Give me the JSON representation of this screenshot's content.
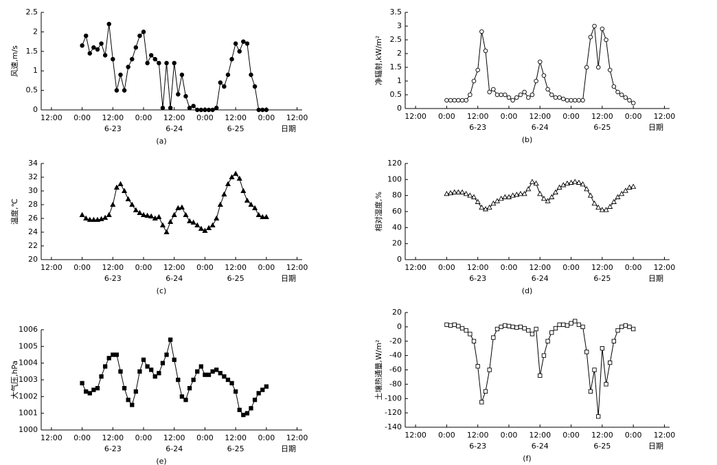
{
  "chart_data": [
    {
      "type": "line",
      "caption": "(a)",
      "y_label": "风速,m/s",
      "x_label": "日期",
      "color": "#000000",
      "marker": "circle",
      "marker_fill": "filled",
      "x": [
        0,
        1.5,
        3,
        4.5,
        6,
        7.5,
        9,
        10.5,
        12,
        13.5,
        15,
        16.5,
        18,
        19.5,
        21,
        22.5,
        24,
        25.5,
        27,
        28.5,
        30,
        31.5,
        33,
        34.5,
        36,
        37.5,
        39,
        40.5,
        42,
        43.5,
        45,
        46.5,
        48,
        49.5,
        51,
        52.5,
        54,
        55.5,
        57,
        58.5,
        60,
        61.5,
        63,
        64.5,
        66,
        67.5,
        69,
        70.5,
        72
      ],
      "values": [
        1.65,
        1.9,
        1.45,
        1.6,
        1.55,
        1.7,
        1.4,
        2.2,
        1.3,
        0.5,
        0.9,
        0.5,
        1.1,
        1.3,
        1.6,
        1.9,
        2.0,
        1.2,
        1.4,
        1.3,
        1.2,
        0.05,
        1.2,
        0.05,
        1.2,
        0.4,
        0.9,
        0.35,
        0.05,
        0.1,
        0,
        0,
        0,
        0,
        0,
        0.05,
        0.7,
        0.6,
        0.9,
        1.3,
        1.7,
        1.5,
        1.75,
        1.7,
        0.9,
        0.6,
        0,
        0,
        0
      ],
      "xlim": [
        -16,
        86
      ],
      "ylim": [
        0,
        2.5
      ],
      "xticks": [
        {
          "value": -12,
          "label": "12:00"
        },
        {
          "value": 0,
          "label": "0:00"
        },
        {
          "value": 12,
          "label": "12:00"
        },
        {
          "value": 24,
          "label": "0:00"
        },
        {
          "value": 36,
          "label": "12:00"
        },
        {
          "value": 48,
          "label": "0:00"
        },
        {
          "value": 60,
          "label": "12:00"
        },
        {
          "value": 72,
          "label": "0:00"
        },
        {
          "value": 84,
          "label": "12:00"
        }
      ],
      "date_labels": [
        {
          "value": 12,
          "label": "6-23"
        },
        {
          "value": 36,
          "label": "6-24"
        },
        {
          "value": 60,
          "label": "6-25"
        }
      ],
      "yticks": [
        0,
        0.5,
        1,
        1.5,
        2,
        2.5
      ]
    },
    {
      "type": "line",
      "caption": "(b)",
      "y_label": "净辐射,kW/m²",
      "x_label": "日期",
      "color": "#000000",
      "marker": "circle",
      "marker_fill": "open",
      "x": [
        0,
        1.5,
        3,
        4.5,
        6,
        7.5,
        9,
        10.5,
        12,
        13.5,
        15,
        16.5,
        18,
        19.5,
        21,
        22.5,
        24,
        25.5,
        27,
        28.5,
        30,
        31.5,
        33,
        34.5,
        36,
        37.5,
        39,
        40.5,
        42,
        43.5,
        45,
        46.5,
        48,
        49.5,
        51,
        52.5,
        54,
        55.5,
        57,
        58.5,
        60,
        61.5,
        63,
        64.5,
        66,
        67.5,
        69,
        70.5,
        72
      ],
      "values": [
        0.3,
        0.3,
        0.3,
        0.3,
        0.3,
        0.3,
        0.5,
        1.0,
        1.4,
        2.8,
        2.1,
        0.6,
        0.7,
        0.5,
        0.5,
        0.5,
        0.4,
        0.3,
        0.4,
        0.5,
        0.6,
        0.4,
        0.5,
        1.0,
        1.7,
        1.2,
        0.7,
        0.5,
        0.4,
        0.4,
        0.35,
        0.3,
        0.3,
        0.3,
        0.3,
        0.3,
        1.5,
        2.6,
        3.0,
        1.5,
        2.9,
        2.5,
        1.4,
        0.8,
        0.6,
        0.5,
        0.4,
        0.3,
        0.2
      ],
      "xlim": [
        -16,
        86
      ],
      "ylim": [
        0,
        3.5
      ],
      "xticks": [
        {
          "value": -12,
          "label": "12:00"
        },
        {
          "value": 0,
          "label": "0:00"
        },
        {
          "value": 12,
          "label": "12:00"
        },
        {
          "value": 24,
          "label": "0:00"
        },
        {
          "value": 36,
          "label": "12:00"
        },
        {
          "value": 48,
          "label": "0:00"
        },
        {
          "value": 60,
          "label": "12:00"
        },
        {
          "value": 72,
          "label": "0:00"
        },
        {
          "value": 84,
          "label": "12:00"
        }
      ],
      "date_labels": [
        {
          "value": 12,
          "label": "6-23"
        },
        {
          "value": 36,
          "label": "6-24"
        },
        {
          "value": 60,
          "label": "6-25"
        }
      ],
      "yticks": [
        0,
        0.5,
        1,
        1.5,
        2,
        2.5,
        3,
        3.5
      ]
    },
    {
      "type": "line",
      "caption": "(c)",
      "y_label": "温度,℃",
      "x_label": "日期",
      "color": "#000000",
      "marker": "triangle",
      "marker_fill": "filled",
      "x": [
        0,
        1.5,
        3,
        4.5,
        6,
        7.5,
        9,
        10.5,
        12,
        13.5,
        15,
        16.5,
        18,
        19.5,
        21,
        22.5,
        24,
        25.5,
        27,
        28.5,
        30,
        31.5,
        33,
        34.5,
        36,
        37.5,
        39,
        40.5,
        42,
        43.5,
        45,
        46.5,
        48,
        49.5,
        51,
        52.5,
        54,
        55.5,
        57,
        58.5,
        60,
        61.5,
        63,
        64.5,
        66,
        67.5,
        69,
        70.5,
        72
      ],
      "values": [
        26.5,
        26,
        25.8,
        25.8,
        25.8,
        25.9,
        26.1,
        26.5,
        28,
        30.5,
        31,
        30,
        28.8,
        28,
        27.2,
        26.8,
        26.5,
        26.4,
        26.3,
        26,
        26.2,
        25,
        24,
        25.5,
        26.5,
        27.5,
        27.6,
        26.5,
        25.6,
        25.4,
        25,
        24.5,
        24.2,
        24.6,
        25,
        26,
        28,
        29.5,
        31,
        32,
        32.5,
        31.8,
        30,
        28.6,
        28,
        27.5,
        26.5,
        26.2,
        26.2
      ],
      "xlim": [
        -16,
        86
      ],
      "ylim": [
        20,
        34
      ],
      "xticks": [
        {
          "value": -12,
          "label": "12:00"
        },
        {
          "value": 0,
          "label": "0:00"
        },
        {
          "value": 12,
          "label": "12:00"
        },
        {
          "value": 24,
          "label": "0:00"
        },
        {
          "value": 36,
          "label": "12:00"
        },
        {
          "value": 48,
          "label": "0:00"
        },
        {
          "value": 60,
          "label": "12:00"
        },
        {
          "value": 72,
          "label": "0:00"
        },
        {
          "value": 84,
          "label": "12:00"
        }
      ],
      "date_labels": [
        {
          "value": 12,
          "label": "6-23"
        },
        {
          "value": 36,
          "label": "6-24"
        },
        {
          "value": 60,
          "label": "6-25"
        }
      ],
      "yticks": [
        20,
        22,
        24,
        26,
        28,
        30,
        32,
        34
      ]
    },
    {
      "type": "line",
      "caption": "(d)",
      "y_label": "相对湿度,%",
      "x_label": "日期",
      "color": "#000000",
      "marker": "triangle",
      "marker_fill": "open",
      "x": [
        0,
        1.5,
        3,
        4.5,
        6,
        7.5,
        9,
        10.5,
        12,
        13.5,
        15,
        16.5,
        18,
        19.5,
        21,
        22.5,
        24,
        25.5,
        27,
        28.5,
        30,
        31.5,
        33,
        34.5,
        36,
        37.5,
        39,
        40.5,
        42,
        43.5,
        45,
        46.5,
        48,
        49.5,
        51,
        52.5,
        54,
        55.5,
        57,
        58.5,
        60,
        61.5,
        63,
        64.5,
        66,
        67.5,
        69,
        70.5,
        72
      ],
      "values": [
        82,
        83,
        84,
        84,
        84,
        82,
        80,
        78,
        72,
        65,
        63,
        65,
        70,
        73,
        76,
        78,
        78,
        80,
        81,
        82,
        82,
        88,
        97,
        95,
        82,
        76,
        73,
        78,
        84,
        90,
        93,
        95,
        96,
        97,
        96,
        94,
        88,
        80,
        70,
        65,
        62,
        62,
        66,
        72,
        78,
        82,
        86,
        90,
        91
      ],
      "xlim": [
        -16,
        86
      ],
      "ylim": [
        0,
        120
      ],
      "xticks": [
        {
          "value": -12,
          "label": "12:00"
        },
        {
          "value": 0,
          "label": "0:00"
        },
        {
          "value": 12,
          "label": "12:00"
        },
        {
          "value": 24,
          "label": "0:00"
        },
        {
          "value": 36,
          "label": "12:00"
        },
        {
          "value": 48,
          "label": "0:00"
        },
        {
          "value": 60,
          "label": "12:00"
        },
        {
          "value": 72,
          "label": "0:00"
        },
        {
          "value": 84,
          "label": "12:00"
        }
      ],
      "date_labels": [
        {
          "value": 12,
          "label": "6-23"
        },
        {
          "value": 36,
          "label": "6-24"
        },
        {
          "value": 60,
          "label": "6-25"
        }
      ],
      "yticks": [
        0,
        20,
        40,
        60,
        80,
        100,
        120
      ]
    },
    {
      "type": "line",
      "caption": "(e)",
      "y_label": "大气压,hPa",
      "x_label": "日期",
      "color": "#000000",
      "marker": "square",
      "marker_fill": "filled",
      "x": [
        0,
        1.5,
        3,
        4.5,
        6,
        7.5,
        9,
        10.5,
        12,
        13.5,
        15,
        16.5,
        18,
        19.5,
        21,
        22.5,
        24,
        25.5,
        27,
        28.5,
        30,
        31.5,
        33,
        34.5,
        36,
        37.5,
        39,
        40.5,
        42,
        43.5,
        45,
        46.5,
        48,
        49.5,
        51,
        52.5,
        54,
        55.5,
        57,
        58.5,
        60,
        61.5,
        63,
        64.5,
        66,
        67.5,
        69,
        70.5,
        72
      ],
      "values": [
        1002.8,
        1002.3,
        1002.2,
        1002.4,
        1002.5,
        1003.2,
        1003.8,
        1004.3,
        1004.5,
        1004.5,
        1003.5,
        1002.5,
        1001.8,
        1001.5,
        1002.3,
        1003.5,
        1004.2,
        1003.8,
        1003.6,
        1003.2,
        1003.4,
        1004,
        1004.5,
        1005.4,
        1004.2,
        1003,
        1002,
        1001.8,
        1002.5,
        1003,
        1003.5,
        1003.8,
        1003.3,
        1003.3,
        1003.5,
        1003.6,
        1003.4,
        1003.2,
        1003,
        1002.8,
        1002.3,
        1001.2,
        1000.9,
        1001,
        1001.3,
        1001.8,
        1002.2,
        1002.4,
        1002.6
      ],
      "xlim": [
        -16,
        86
      ],
      "ylim": [
        1000,
        1006
      ],
      "xticks": [
        {
          "value": -12,
          "label": "12:00"
        },
        {
          "value": 0,
          "label": "0:00"
        },
        {
          "value": 12,
          "label": "12:00"
        },
        {
          "value": 24,
          "label": "0:00"
        },
        {
          "value": 36,
          "label": "12:00"
        },
        {
          "value": 48,
          "label": "0:00"
        },
        {
          "value": 60,
          "label": "12:00"
        },
        {
          "value": 72,
          "label": "0:00"
        },
        {
          "value": 84,
          "label": "12:00"
        }
      ],
      "date_labels": [
        {
          "value": 12,
          "label": "6-23"
        },
        {
          "value": 36,
          "label": "6-24"
        },
        {
          "value": 60,
          "label": "6-25"
        }
      ],
      "yticks": [
        1000,
        1001,
        1002,
        1003,
        1004,
        1005,
        1006
      ]
    },
    {
      "type": "line",
      "caption": "(f)",
      "y_label": "土壤热通量,W/m²",
      "x_label": "日期",
      "color": "#000000",
      "marker": "square",
      "marker_fill": "open",
      "x": [
        0,
        1.5,
        3,
        4.5,
        6,
        7.5,
        9,
        10.5,
        12,
        13.5,
        15,
        16.5,
        18,
        19.5,
        21,
        22.5,
        24,
        25.5,
        27,
        28.5,
        30,
        31.5,
        33,
        34.5,
        36,
        37.5,
        39,
        40.5,
        42,
        43.5,
        45,
        46.5,
        48,
        49.5,
        51,
        52.5,
        54,
        55.5,
        57,
        58.5,
        60,
        61.5,
        63,
        64.5,
        66,
        67.5,
        69,
        70.5,
        72
      ],
      "values": [
        3,
        2,
        3,
        1,
        -2,
        -5,
        -10,
        -20,
        -55,
        -105,
        -90,
        -60,
        -15,
        -3,
        0,
        2,
        1,
        0,
        -1,
        0,
        -2,
        -5,
        -10,
        -3,
        -68,
        -40,
        -20,
        -8,
        -2,
        3,
        3,
        2,
        5,
        8,
        3,
        0,
        -35,
        -90,
        -60,
        -125,
        -30,
        -80,
        -50,
        -20,
        -5,
        0,
        2,
        0,
        -3
      ],
      "xlim": [
        -16,
        86
      ],
      "ylim": [
        -140,
        20
      ],
      "xticks": [
        {
          "value": -12,
          "label": "12:00"
        },
        {
          "value": 0,
          "label": "0:00"
        },
        {
          "value": 12,
          "label": "12:00"
        },
        {
          "value": 24,
          "label": "0:00"
        },
        {
          "value": 36,
          "label": "12:00"
        },
        {
          "value": 48,
          "label": "0:00"
        },
        {
          "value": 60,
          "label": "12:00"
        },
        {
          "value": 72,
          "label": "0:00"
        },
        {
          "value": 84,
          "label": "12:00"
        }
      ],
      "date_labels": [
        {
          "value": 12,
          "label": "6-23"
        },
        {
          "value": 36,
          "label": "6-24"
        },
        {
          "value": 60,
          "label": "6-25"
        }
      ],
      "yticks": [
        -140,
        -120,
        -100,
        -80,
        -60,
        -40,
        -20,
        0,
        20
      ]
    }
  ]
}
